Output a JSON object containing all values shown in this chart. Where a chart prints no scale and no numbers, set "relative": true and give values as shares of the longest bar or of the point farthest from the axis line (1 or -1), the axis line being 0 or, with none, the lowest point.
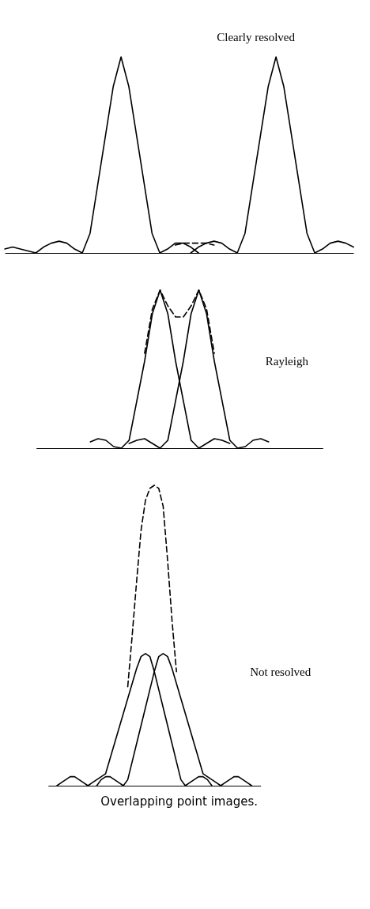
{
  "chart_data": [
    {
      "type": "line",
      "title": "Clearly resolved",
      "relative": true,
      "categories": [
        null,
        null,
        null,
        null,
        null,
        null,
        null,
        null,
        null,
        null,
        null,
        null,
        null,
        null,
        null,
        null,
        null,
        null,
        null,
        null,
        null,
        null,
        null,
        null,
        null,
        null,
        null,
        null,
        null,
        null,
        null,
        null,
        null,
        null,
        null,
        null,
        null,
        null,
        null,
        null,
        null,
        null,
        null,
        null,
        null,
        null
      ],
      "series": [
        {
          "color": "#000000",
          "line_style": "solid",
          "values": [
            0.02,
            0.03,
            0.02,
            0.01,
            0,
            0.03,
            0.05,
            0.06,
            0.05,
            0.02,
            0,
            0.1,
            0.35,
            0.6,
            0.85,
            1,
            0.85,
            0.6,
            0.35,
            0.1,
            0,
            0.02,
            0.05,
            0.05,
            0.03,
            0,
            null,
            null,
            null,
            null,
            null,
            null,
            null,
            null,
            null,
            null,
            null,
            null,
            null,
            null,
            null,
            null,
            null,
            null,
            null,
            null
          ]
        },
        {
          "color": "#000000",
          "line_style": "solid",
          "values": [
            null,
            null,
            null,
            null,
            null,
            null,
            null,
            null,
            null,
            null,
            null,
            null,
            null,
            null,
            null,
            null,
            null,
            null,
            null,
            null,
            null,
            null,
            null,
            null,
            0,
            0.03,
            0.05,
            0.06,
            0.05,
            0.02,
            0,
            0.1,
            0.35,
            0.6,
            0.85,
            1,
            0.85,
            0.6,
            0.35,
            0.1,
            0,
            0.02,
            0.05,
            0.06,
            0.05,
            0.03
          ]
        },
        {
          "color": "#000000",
          "line_style": "dashed",
          "values": [
            null,
            null,
            null,
            null,
            null,
            null,
            null,
            null,
            null,
            null,
            null,
            null,
            null,
            null,
            null,
            null,
            null,
            null,
            null,
            null,
            null,
            null,
            0.04,
            0.05,
            0.05,
            0.05,
            0.05,
            0.04,
            null,
            null,
            null,
            null,
            null,
            null,
            null,
            null,
            null,
            null,
            null,
            null,
            null,
            null,
            null,
            null,
            null,
            null
          ]
        }
      ]
    },
    {
      "type": "line",
      "title": "Rayleigh",
      "relative": true,
      "categories": [
        null,
        null,
        null,
        null,
        null,
        null,
        null,
        null,
        null,
        null,
        null,
        null,
        null,
        null,
        null,
        null,
        null,
        null,
        null,
        null,
        null,
        null,
        null,
        null,
        null,
        null,
        null,
        null,
        null,
        null,
        null,
        null,
        null,
        null,
        null,
        null,
        null,
        null
      ],
      "series": [
        {
          "color": "#000000",
          "line_style": "solid",
          "values": [
            null,
            null,
            null,
            null,
            null,
            null,
            null,
            0.04,
            0.06,
            0.05,
            0.01,
            0,
            0.05,
            0.3,
            0.55,
            0.85,
            1,
            0.85,
            0.55,
            0.3,
            0.05,
            0,
            0.03,
            0.06,
            0.05,
            0.03,
            null,
            null,
            null,
            null,
            null,
            null,
            null,
            null,
            null,
            null,
            null,
            null
          ]
        },
        {
          "color": "#000000",
          "line_style": "solid",
          "values": [
            null,
            null,
            null,
            null,
            null,
            null,
            null,
            null,
            null,
            null,
            null,
            null,
            0.03,
            0.05,
            0.06,
            0.03,
            0,
            0.05,
            0.3,
            0.55,
            0.85,
            1,
            0.85,
            0.55,
            0.3,
            0.05,
            0,
            0.01,
            0.05,
            0.06,
            0.04,
            null,
            null,
            null,
            null,
            null,
            null,
            null
          ]
        },
        {
          "color": "#000000",
          "line_style": "dashed",
          "values": [
            null,
            null,
            null,
            null,
            null,
            null,
            null,
            null,
            null,
            null,
            null,
            null,
            null,
            null,
            0.6,
            0.88,
            1,
            0.9,
            0.83,
            0.83,
            0.9,
            1,
            0.88,
            0.6,
            null,
            null,
            null,
            null,
            null,
            null,
            null,
            null,
            null,
            null,
            null,
            null,
            null,
            null
          ]
        }
      ]
    },
    {
      "type": "line",
      "title": "Not resolved",
      "relative": true,
      "annotations": [
        "Overlapping point images."
      ],
      "categories": [
        null,
        null,
        null,
        null,
        null,
        null,
        null,
        null,
        null,
        null,
        null,
        null,
        null,
        null,
        null,
        null,
        null,
        null,
        null,
        null,
        null,
        null,
        null,
        null,
        null,
        null,
        null,
        null,
        null,
        null,
        null,
        null,
        null,
        null,
        null,
        null,
        null,
        null,
        null,
        null,
        null,
        null,
        null,
        null,
        null,
        null,
        null,
        null,
        null
      ],
      "series": [
        {
          "color": "#000000",
          "line_style": "solid",
          "values": [
            null,
            null,
            0,
            0.01,
            0.02,
            0.03,
            0.03,
            0.02,
            0.01,
            0,
            0.01,
            0.02,
            0.03,
            0.04,
            0.09,
            0.14,
            0.19,
            0.24,
            0.29,
            0.34,
            0.39,
            0.43,
            0.44,
            0.43,
            0.38,
            0.32,
            0.26,
            0.2,
            0.14,
            0.08,
            0.02,
            0,
            0.01,
            0.02,
            0.03,
            0.03,
            0.02,
            0,
            null,
            null,
            null,
            null,
            null,
            null,
            null,
            null,
            null,
            null,
            null
          ]
        },
        {
          "color": "#000000",
          "line_style": "solid",
          "values": [
            null,
            null,
            null,
            null,
            null,
            null,
            null,
            null,
            null,
            null,
            null,
            0,
            0.02,
            0.03,
            0.03,
            0.02,
            0.01,
            0,
            0.02,
            0.08,
            0.14,
            0.2,
            0.26,
            0.32,
            0.38,
            0.43,
            0.44,
            0.43,
            0.39,
            0.34,
            0.29,
            0.24,
            0.19,
            0.14,
            0.09,
            0.04,
            0.03,
            0.02,
            0.01,
            0,
            0.01,
            0.02,
            0.03,
            0.03,
            0.02,
            0.01,
            0,
            null,
            null
          ]
        },
        {
          "color": "#000000",
          "line_style": "dashed",
          "values": [
            null,
            null,
            null,
            null,
            null,
            null,
            null,
            null,
            null,
            null,
            null,
            null,
            null,
            null,
            null,
            null,
            null,
            null,
            0.33,
            0.5,
            0.68,
            0.85,
            0.95,
            0.99,
            1,
            0.99,
            0.93,
            0.75,
            0.55,
            0.38,
            null,
            null,
            null,
            null,
            null,
            null,
            null,
            null,
            null,
            null,
            null,
            null,
            null,
            null,
            null,
            null,
            null,
            null,
            null
          ]
        }
      ]
    }
  ]
}
